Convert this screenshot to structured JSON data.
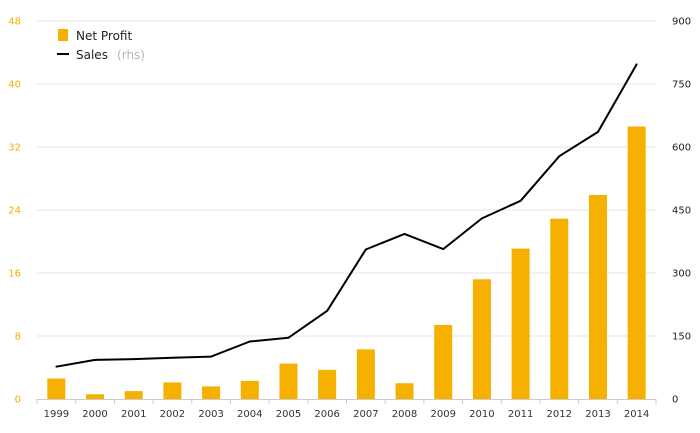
{
  "chart_data": {
    "type": "bar",
    "categories": [
      "1999",
      "2000",
      "2001",
      "2002",
      "2003",
      "2004",
      "2005",
      "2006",
      "2007",
      "2008",
      "2009",
      "2010",
      "2011",
      "2012",
      "2013",
      "2014"
    ],
    "series": [
      {
        "name": "Net Profit",
        "type": "bar",
        "axis": "left",
        "color": "#f5b000",
        "values": [
          2.6,
          0.6,
          1.0,
          2.1,
          1.6,
          2.3,
          4.5,
          3.7,
          6.3,
          2.0,
          9.4,
          15.2,
          19.1,
          22.9,
          25.9,
          34.6
        ]
      },
      {
        "name": "Sales",
        "name_suffix": "(rhs)",
        "type": "line",
        "axis": "right",
        "color": "#000000",
        "values": [
          77,
          93,
          95,
          98,
          101,
          137,
          146,
          210,
          356,
          393,
          357,
          430,
          472,
          578,
          636,
          797
        ]
      }
    ],
    "y_left": {
      "ylim": [
        0,
        48
      ],
      "ticks": [
        "0",
        "8",
        "16",
        "24",
        "32",
        "40",
        "48"
      ],
      "color": "#f5b000"
    },
    "y_right": {
      "ylim": [
        0,
        900
      ],
      "ticks": [
        "0",
        "150",
        "300",
        "450",
        "600",
        "750",
        "900"
      ]
    },
    "grid": true,
    "legend": "top-left",
    "title": "",
    "xlabel": "",
    "ylabel": ""
  }
}
